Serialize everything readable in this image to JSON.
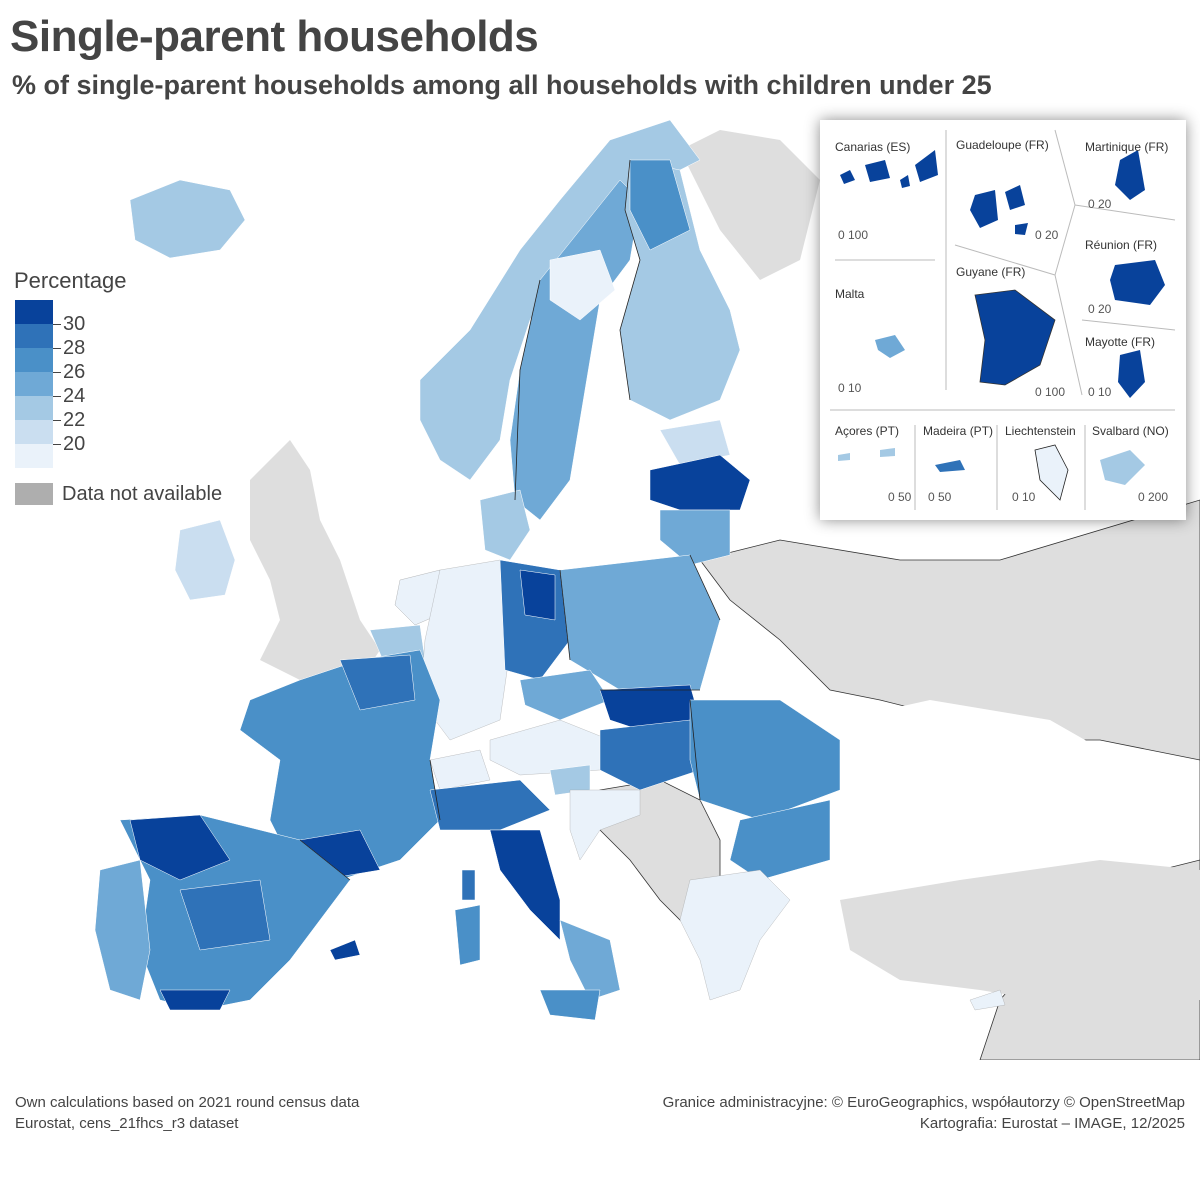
{
  "title": "Single-parent households",
  "subtitle": "% of single-parent households among all households with children under 25",
  "legend": {
    "title": "Percentage",
    "classes": [
      {
        "label": "30",
        "color": "#08429b"
      },
      {
        "label": "28",
        "color": "#2f72b8"
      },
      {
        "label": "26",
        "color": "#4a90c8"
      },
      {
        "label": "24",
        "color": "#6fa9d6"
      },
      {
        "label": "22",
        "color": "#a4c9e4"
      },
      {
        "label": "20",
        "color": "#cadef0"
      },
      {
        "label": "",
        "color": "#eaf2fa"
      }
    ],
    "na_label": "Data not available",
    "na_color": "#aeaeae"
  },
  "insets": {
    "canarias": {
      "label": "Canarias (ES)",
      "scale": "0  100"
    },
    "guadeloupe": {
      "label": "Guadeloupe (FR)",
      "scale": "0  20"
    },
    "martinique": {
      "label": "Martinique (FR)",
      "scale": "0  20"
    },
    "reunion": {
      "label": "Réunion (FR)",
      "scale": "0  20"
    },
    "malta": {
      "label": "Malta",
      "scale": "0  10"
    },
    "guyane": {
      "label": "Guyane (FR)",
      "scale": "0    100"
    },
    "mayotte": {
      "label": "Mayotte (FR)",
      "scale": "0 10"
    },
    "acores": {
      "label": "Açores (PT)",
      "scale": "0  50"
    },
    "madeira": {
      "label": "Madeira (PT)",
      "scale": "0    50"
    },
    "liechtenstein": {
      "label": "Liechtenstein",
      "scale": "0  10"
    },
    "svalbard": {
      "label": "Svalbard (NO)",
      "scale": "0    200"
    }
  },
  "footer": {
    "left_line1": "Own calculations based on 2021 round census data",
    "left_line2": "Eurostat, cens_21fhcs_r3 dataset",
    "right_line1": "Granice administracyjne: © EuroGeographics, współautorzy © OpenStreetMap",
    "right_line2": "Kartografia: Eurostat – IMAGE, 12/2025"
  }
}
